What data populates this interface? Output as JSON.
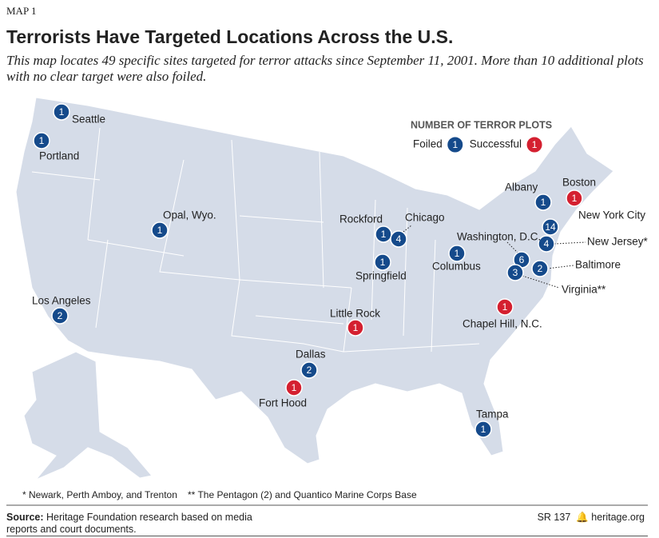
{
  "header": {
    "label": "MAP 1",
    "title": "Terrorists Have Targeted Locations Across the U.S.",
    "subtitle": "This map locates 49 specific sites targeted for terror attacks since September 11, 2001.  More than 10 additional plots with no clear target were also foiled."
  },
  "legend": {
    "title": "NUMBER OF TERROR PLOTS",
    "items": [
      {
        "label": "Foiled",
        "count": 1,
        "color": "#154a8b"
      },
      {
        "label": "Successful",
        "count": 1,
        "color": "#d42030"
      }
    ]
  },
  "sites": [
    {
      "name": "Seattle",
      "count": 1,
      "color": "#154a8b"
    },
    {
      "name": "Portland",
      "count": 1,
      "color": "#154a8b"
    },
    {
      "name": "Opal, Wyo.",
      "count": 1,
      "color": "#154a8b"
    },
    {
      "name": "Los Angeles",
      "count": 2,
      "color": "#154a8b"
    },
    {
      "name": "Rockford",
      "count": 1,
      "color": "#154a8b"
    },
    {
      "name": "Chicago",
      "count": 4,
      "color": "#154a8b"
    },
    {
      "name": "Springfield",
      "count": 1,
      "color": "#154a8b"
    },
    {
      "name": "Columbus",
      "count": 1,
      "color": "#154a8b"
    },
    {
      "name": "Little Rock",
      "count": 1,
      "color": "#d42030"
    },
    {
      "name": "Dallas",
      "count": 2,
      "color": "#154a8b"
    },
    {
      "name": "Fort Hood",
      "count": 1,
      "color": "#d42030"
    },
    {
      "name": "Tampa",
      "count": 1,
      "color": "#154a8b"
    },
    {
      "name": "Chapel Hill, N.C.",
      "count": 1,
      "color": "#d42030"
    },
    {
      "name": "Albany",
      "count": 1,
      "color": "#154a8b"
    },
    {
      "name": "Boston",
      "count": 1,
      "color": "#d42030"
    },
    {
      "name": "New York City",
      "count": 14,
      "color": "#154a8b"
    },
    {
      "name": "New Jersey*",
      "count": 4,
      "color": "#154a8b"
    },
    {
      "name": "Washington, D.C.",
      "count": 6,
      "color": "#154a8b"
    },
    {
      "name": "Baltimore",
      "count": 2,
      "color": "#154a8b"
    },
    {
      "name": "Virginia**",
      "count": 3,
      "color": "#154a8b"
    }
  ],
  "footnotes": [
    "* Newark, Perth Amboy, and Trenton",
    "** The Pentagon (2) and Quantico Marine Corps Base"
  ],
  "source": {
    "label": "Source:",
    "text": "Heritage Foundation research based on media reports and court documents."
  },
  "report": "SR 137",
  "website": "heritage.org"
}
